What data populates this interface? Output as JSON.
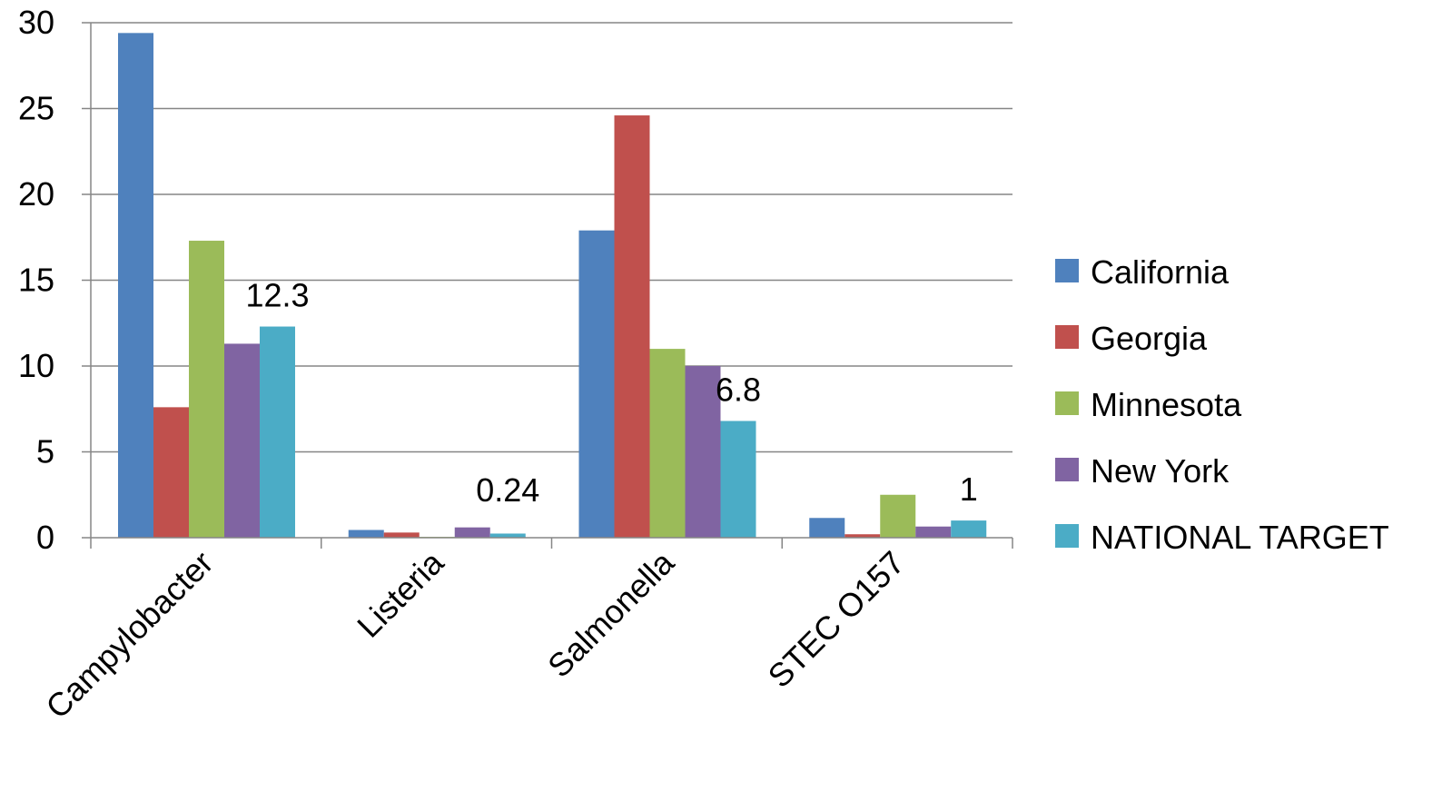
{
  "chart_data": {
    "type": "bar",
    "title": "",
    "xlabel": "",
    "ylabel": "",
    "categories": [
      "Campylobacter",
      "Listeria",
      "Salmonella",
      "STEC O157"
    ],
    "ylim": [
      0,
      30
    ],
    "yticks": [
      0,
      5,
      10,
      15,
      20,
      25,
      30
    ],
    "grid": true,
    "legend_position": "right",
    "series": [
      {
        "name": "California",
        "color": "#4F81BD",
        "values": [
          29.4,
          0.45,
          17.9,
          1.15
        ]
      },
      {
        "name": "Georgia",
        "color": "#C0504D",
        "values": [
          7.6,
          0.3,
          24.6,
          0.2
        ]
      },
      {
        "name": "Minnesota",
        "color": "#9BBB59",
        "values": [
          17.3,
          0.05,
          11.0,
          2.5
        ]
      },
      {
        "name": "New York",
        "color": "#8064A2",
        "values": [
          11.3,
          0.6,
          10.0,
          0.65
        ]
      },
      {
        "name": "NATIONAL TARGET",
        "color": "#4BACC6",
        "values": [
          12.3,
          0.24,
          6.8,
          1
        ]
      }
    ],
    "data_labels": [
      {
        "series": "NATIONAL TARGET",
        "category": "Campylobacter",
        "text": "12.3"
      },
      {
        "series": "NATIONAL TARGET",
        "category": "Listeria",
        "text": "0.24"
      },
      {
        "series": "NATIONAL TARGET",
        "category": "Salmonella",
        "text": "6.8"
      },
      {
        "series": "NATIONAL TARGET",
        "category": "STEC O157",
        "text": "1"
      }
    ]
  }
}
